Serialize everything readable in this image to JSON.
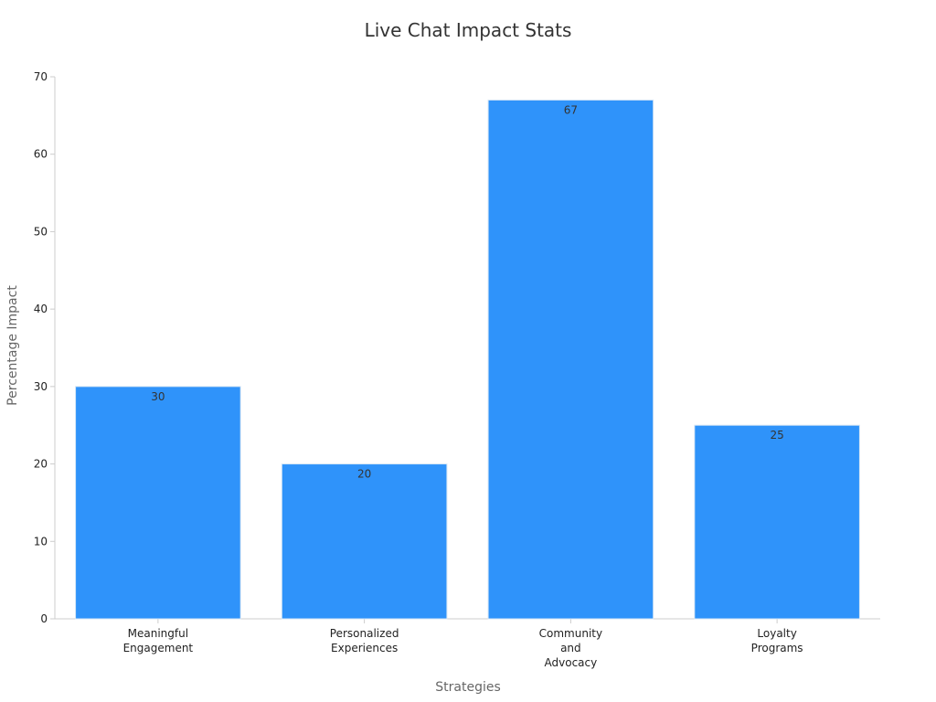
{
  "chart_data": {
    "type": "bar",
    "title": "Live Chat Impact Stats",
    "xlabel": "Strategies",
    "ylabel": "Percentage Impact",
    "categories": [
      [
        "Meaningful",
        "Engagement"
      ],
      [
        "Personalized",
        "Experiences"
      ],
      [
        "Community",
        "and",
        "Advocacy"
      ],
      [
        "Loyalty",
        "Programs"
      ]
    ],
    "values": [
      30,
      20,
      67,
      25
    ],
    "ylim": [
      0,
      70
    ],
    "yticks": [
      0,
      10,
      20,
      30,
      40,
      50,
      60,
      70
    ],
    "grid": false,
    "legend": "none",
    "bar_color": "#2f93fa",
    "bar_edge_color": "#d6e6f5"
  }
}
